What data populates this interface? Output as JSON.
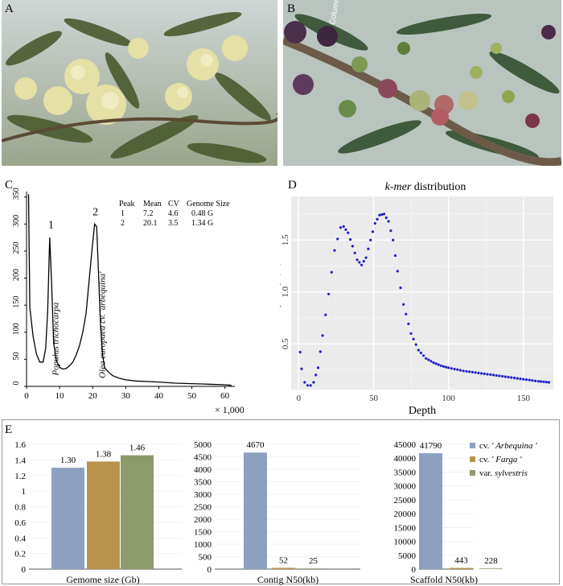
{
  "figure": {
    "panel_a": {
      "label": "A"
    },
    "panel_b": {
      "label": "B",
      "watermark": "Columns"
    },
    "panel_c": {
      "label": "C"
    },
    "panel_d": {
      "label": "D"
    },
    "panel_e": {
      "label": "E"
    }
  },
  "chart_data": [
    {
      "id": "C",
      "type": "line",
      "xlabel": "× 1,000",
      "ylim": [
        0,
        360
      ],
      "xlim": [
        0,
        63
      ],
      "yticks": [
        0,
        50,
        100,
        150,
        200,
        250,
        300,
        350
      ],
      "xticks": [
        0,
        10,
        20,
        30,
        40,
        50,
        60
      ],
      "peak_labels": [
        "1",
        "2"
      ],
      "annotations": [
        "Populus trichocarpa",
        "Olea europaea cv. 'arbequina'"
      ],
      "table": {
        "headers": [
          "Peak",
          "Mean",
          "CV",
          "Genome Size"
        ],
        "rows": [
          [
            "1",
            "7.2",
            "4.6",
            "0.48 G"
          ],
          [
            "2",
            "20.1",
            "3.5",
            "1.34 G"
          ]
        ]
      },
      "series": [
        {
          "x": [
            0.6,
            1,
            2,
            3,
            4,
            5,
            5.8,
            6.4,
            7.0,
            7.6,
            8.2,
            9,
            10,
            11,
            12,
            13,
            14,
            15,
            16,
            17,
            18,
            19,
            20,
            20.6,
            21.2,
            21.8,
            22.4,
            23,
            23.6,
            24.5,
            26,
            28,
            30,
            33,
            36,
            40,
            45,
            50,
            55,
            60,
            62
          ],
          "y": [
            355,
            145,
            92,
            60,
            45,
            45,
            70,
            140,
            275,
            190,
            80,
            48,
            35,
            32,
            33,
            38,
            45,
            58,
            75,
            100,
            135,
            200,
            265,
            300,
            295,
            205,
            110,
            58,
            35,
            28,
            20,
            15,
            12,
            10,
            9,
            8,
            6,
            5,
            4,
            3,
            2
          ]
        }
      ]
    },
    {
      "id": "D",
      "type": "scatter",
      "title": "k-mer distribution",
      "xlabel": "Depth",
      "ylabel": "Frequency (%)",
      "xlim": [
        -5,
        170
      ],
      "ylim": [
        0.06,
        1.92
      ],
      "xticks": [
        0,
        50,
        100,
        150
      ],
      "yticks": [
        0.5,
        1.0,
        1.5
      ],
      "ytick_labels": [
        "0.5",
        "1.0",
        "1.5"
      ],
      "grid": true,
      "color": "#1f1fcc",
      "series": [
        {
          "x": [
            1,
            2,
            4,
            6,
            8,
            10,
            13,
            16,
            20,
            24,
            28,
            30,
            33,
            36,
            39,
            42,
            45,
            48,
            51,
            54,
            57,
            60,
            63,
            66,
            70,
            75,
            80,
            85,
            90,
            95,
            100,
            110,
            120,
            130,
            140,
            150,
            160,
            167
          ],
          "y": [
            0.42,
            0.26,
            0.13,
            0.1,
            0.1,
            0.13,
            0.27,
            0.58,
            0.98,
            1.4,
            1.62,
            1.63,
            1.57,
            1.44,
            1.31,
            1.26,
            1.33,
            1.5,
            1.66,
            1.74,
            1.75,
            1.68,
            1.5,
            1.2,
            0.88,
            0.6,
            0.44,
            0.36,
            0.32,
            0.29,
            0.27,
            0.24,
            0.22,
            0.2,
            0.18,
            0.16,
            0.14,
            0.13
          ]
        }
      ]
    },
    {
      "id": "E1",
      "type": "bar",
      "xlabel": "Gemome size (Gb)",
      "ylim": [
        0,
        1.6
      ],
      "yticks": [
        0,
        0.2,
        0.4,
        0.6,
        0.8,
        1,
        1.2,
        1.4,
        1.6
      ],
      "ytick_labels": [
        "0",
        "0.2",
        "0.4",
        "0.6",
        "0.8",
        "1",
        "1.2",
        "1.4",
        "1.6"
      ],
      "values": [
        1.3,
        1.38,
        1.46
      ],
      "data_labels": [
        "1.30",
        "1.38",
        "1.46"
      ]
    },
    {
      "id": "E2",
      "type": "bar",
      "xlabel": "Contig N50(kb)",
      "ylim": [
        0,
        5000
      ],
      "yticks": [
        0,
        500,
        1000,
        1500,
        2000,
        2500,
        3000,
        3500,
        4000,
        4500,
        5000
      ],
      "ytick_labels": [
        "0",
        "500",
        "1000",
        "1500",
        "2000",
        "2500",
        "3000",
        "3500",
        "4000",
        "4500",
        "5000"
      ],
      "values": [
        4670,
        52,
        25
      ],
      "data_labels": [
        "4670",
        "52",
        "25"
      ]
    },
    {
      "id": "E3",
      "type": "bar",
      "xlabel": "Scaffold N50(kb)",
      "ylim": [
        0,
        45000
      ],
      "yticks": [
        0,
        5000,
        10000,
        15000,
        20000,
        25000,
        30000,
        35000,
        40000,
        45000
      ],
      "ytick_labels": [
        "0",
        "5000",
        "10000",
        "15000",
        "20000",
        "25000",
        "30000",
        "35000",
        "40000",
        "45000"
      ],
      "values": [
        41790,
        443,
        228
      ],
      "data_labels": [
        "41790",
        "443",
        "228"
      ]
    }
  ],
  "legend": {
    "items": [
      {
        "prefix": "cv. ",
        "name": "' Arbequina '",
        "color": "#8da0c2"
      },
      {
        "prefix": "cv. ",
        "name": "' Farga '",
        "color": "#b8944a"
      },
      {
        "prefix": "var. ",
        "name": "sylvestris",
        "color": "#8d9a6a"
      }
    ]
  }
}
